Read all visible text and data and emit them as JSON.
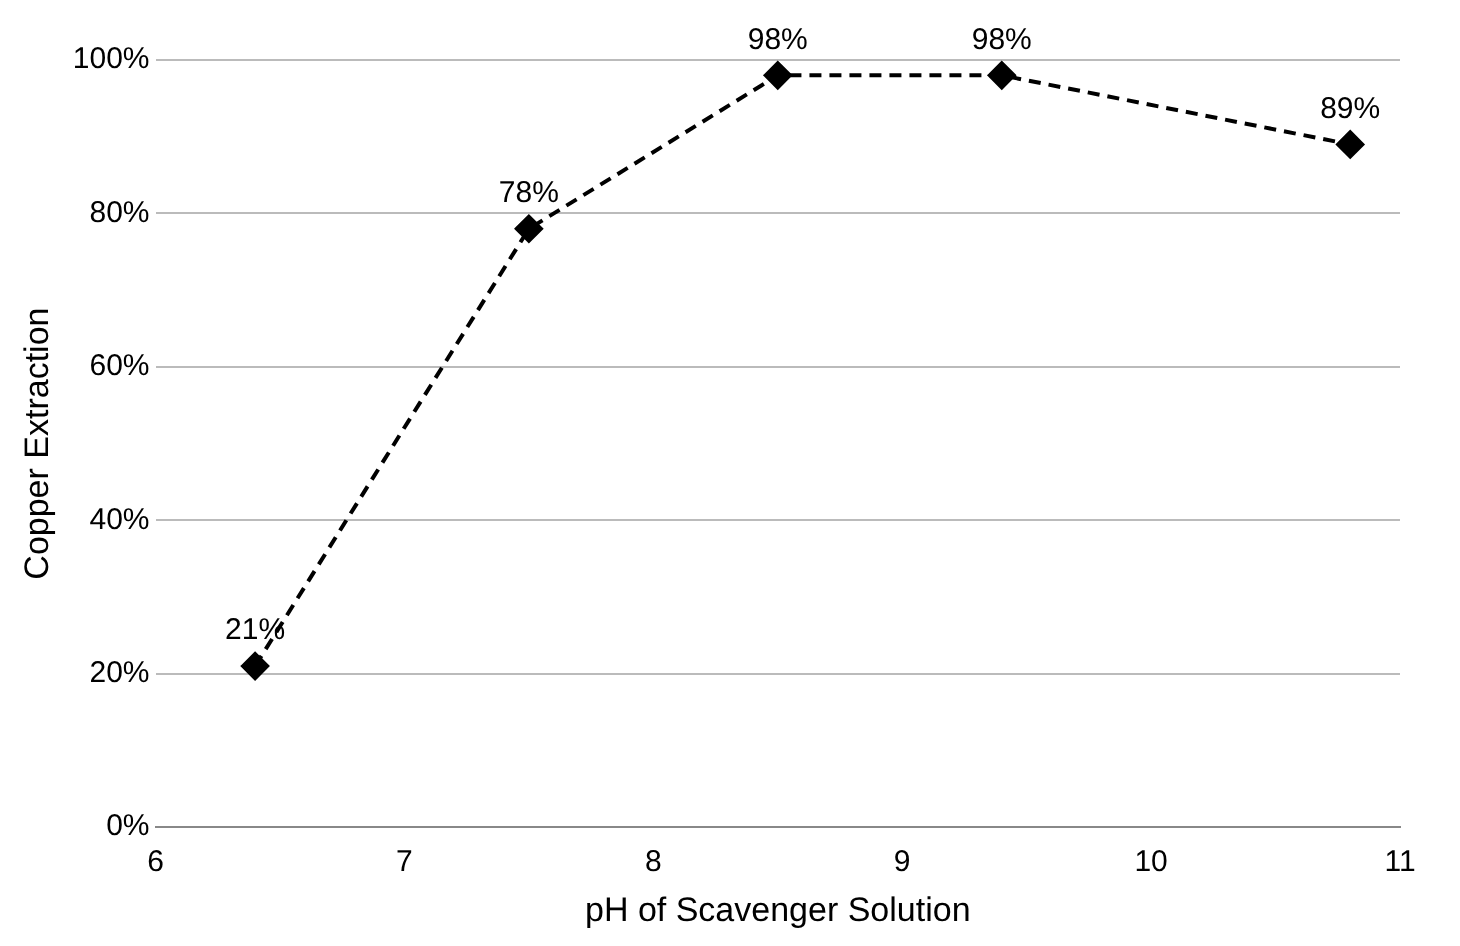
{
  "chart_data": {
    "type": "line",
    "xlabel": "pH of Scavenger Solution",
    "ylabel": "Copper Extraction",
    "x": [
      6.4,
      7.5,
      8.5,
      9.4,
      10.8
    ],
    "series": [
      {
        "color": "#000000",
        "values": [
          21,
          78,
          98,
          98,
          89
        ],
        "value_labels": [
          "21%",
          "78%",
          "98%",
          "98%",
          "89%"
        ]
      }
    ],
    "xlim": [
      6,
      11
    ],
    "xticks": [
      6,
      7,
      8,
      9,
      10,
      11
    ],
    "ylim": [
      0,
      100
    ],
    "yticks": [
      {
        "value": 0,
        "label": "0%"
      },
      {
        "value": 20,
        "label": "20%"
      },
      {
        "value": 40,
        "label": "40%"
      },
      {
        "value": 60,
        "label": "60%"
      },
      {
        "value": 80,
        "label": "80%"
      },
      {
        "value": 100,
        "label": "100%"
      }
    ],
    "grid": "y",
    "legend": false,
    "marker": "diamond",
    "line_style": "dashed"
  }
}
